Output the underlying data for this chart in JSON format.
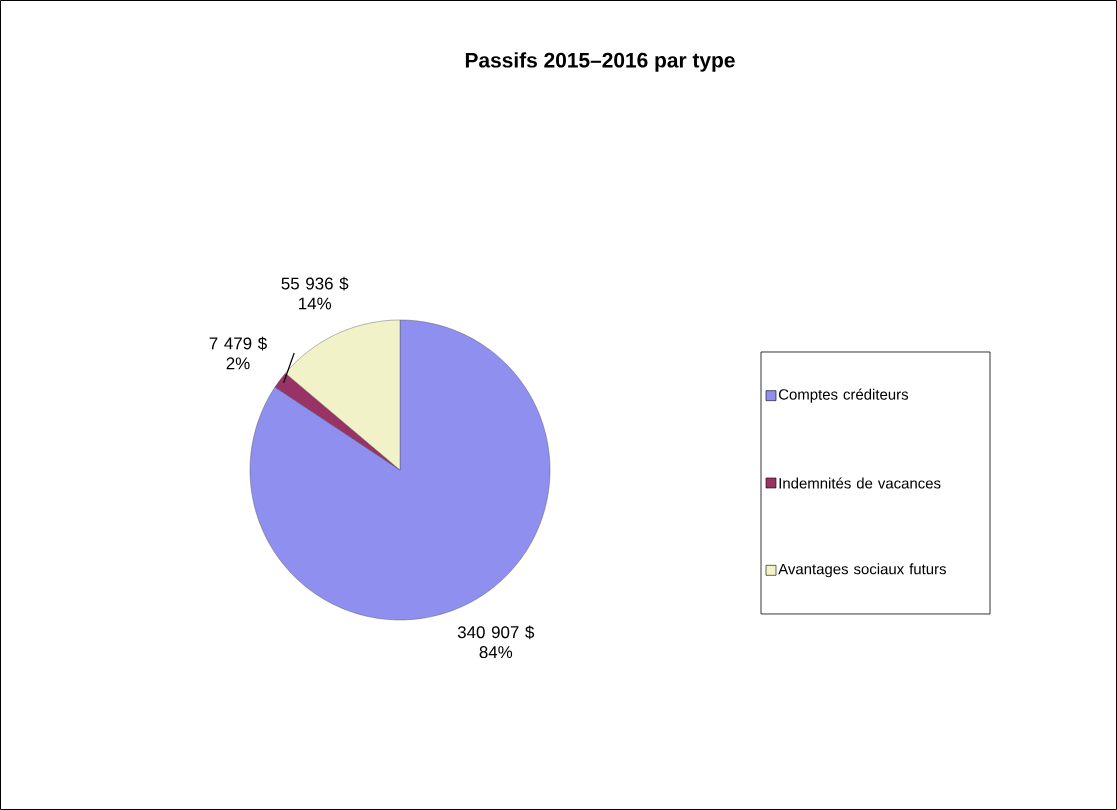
{
  "chart_data": {
    "type": "pie",
    "title": "Passifs 2015–2016 par type",
    "categories": [
      "Comptes créditeurs",
      "Indemnités de vacances",
      "Avantages sociaux futurs"
    ],
    "values": [
      340907,
      7479,
      55936
    ],
    "colors": [
      "#8f8fef",
      "#993366",
      "#f2f2c8"
    ],
    "value_labels": [
      "340 907 $\n84%",
      "7 479 $\n2%",
      "55 936 $\n14%"
    ],
    "legend": "right"
  }
}
